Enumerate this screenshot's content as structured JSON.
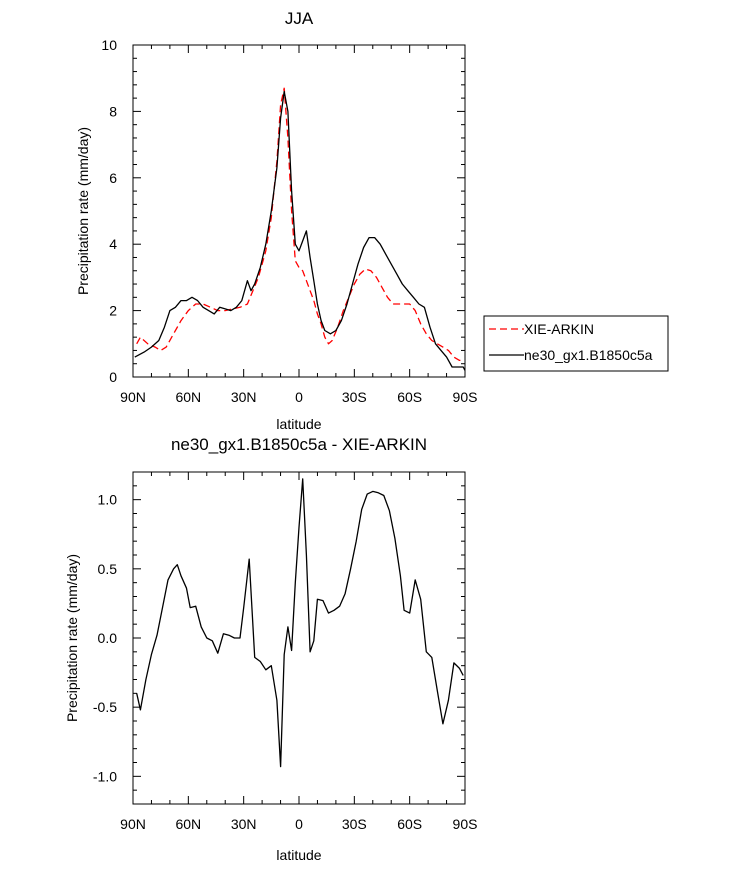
{
  "chart_data": [
    {
      "type": "line",
      "title": "JJA",
      "xlabel": "latitude",
      "ylabel": "Precipitation rate (mm/day)",
      "xlim": [
        -90,
        90
      ],
      "ylim": [
        0,
        10
      ],
      "x_tick_values": [
        -90,
        -60,
        -30,
        0,
        30,
        60,
        90
      ],
      "x_tick_labels": [
        "90N",
        "60N",
        "30N",
        "0",
        "30S",
        "60S",
        "90S"
      ],
      "y_tick_values": [
        0,
        2,
        4,
        6,
        8,
        10
      ],
      "y_tick_labels": [
        "0",
        "2",
        "4",
        "6",
        "8",
        "10"
      ],
      "legend_position": "right",
      "series": [
        {
          "name": "XIE-ARKIN",
          "color": "#ff0000",
          "dash": "dashed",
          "points": [
            [
              -88,
              1.0
            ],
            [
              -86,
              1.2
            ],
            [
              -82,
              1.0
            ],
            [
              -78,
              0.9
            ],
            [
              -75,
              0.8
            ],
            [
              -72,
              0.9
            ],
            [
              -68,
              1.3
            ],
            [
              -64,
              1.7
            ],
            [
              -60,
              2.0
            ],
            [
              -56,
              2.2
            ],
            [
              -52,
              2.2
            ],
            [
              -48,
              2.1
            ],
            [
              -44,
              2.0
            ],
            [
              -40,
              2.0
            ],
            [
              -36,
              2.05
            ],
            [
              -32,
              2.1
            ],
            [
              -28,
              2.2
            ],
            [
              -25,
              2.6
            ],
            [
              -22,
              3.0
            ],
            [
              -18,
              3.8
            ],
            [
              -15,
              4.8
            ],
            [
              -12,
              6.5
            ],
            [
              -10,
              8.2
            ],
            [
              -8,
              8.7
            ],
            [
              -6,
              7.2
            ],
            [
              -4,
              5.0
            ],
            [
              -2,
              3.5
            ],
            [
              0,
              3.3
            ],
            [
              2,
              3.2
            ],
            [
              4,
              2.9
            ],
            [
              6,
              2.6
            ],
            [
              8,
              2.3
            ],
            [
              10,
              1.9
            ],
            [
              12,
              1.6
            ],
            [
              14,
              1.2
            ],
            [
              16,
              1.0
            ],
            [
              18,
              1.1
            ],
            [
              21,
              1.5
            ],
            [
              24,
              2.0
            ],
            [
              27,
              2.4
            ],
            [
              30,
              2.8
            ],
            [
              33,
              3.1
            ],
            [
              36,
              3.25
            ],
            [
              39,
              3.2
            ],
            [
              42,
              3.0
            ],
            [
              45,
              2.7
            ],
            [
              48,
              2.4
            ],
            [
              51,
              2.2
            ],
            [
              54,
              2.2
            ],
            [
              57,
              2.2
            ],
            [
              60,
              2.2
            ],
            [
              63,
              2.0
            ],
            [
              66,
              1.6
            ],
            [
              69,
              1.3
            ],
            [
              72,
              1.1
            ],
            [
              75,
              1.0
            ],
            [
              78,
              0.9
            ],
            [
              81,
              0.8
            ],
            [
              84,
              0.6
            ],
            [
              87,
              0.5
            ],
            [
              89,
              0.5
            ]
          ]
        },
        {
          "name": "ne30_gx1.B1850c5a",
          "color": "#000000",
          "dash": "solid",
          "points": [
            [
              -89,
              0.6
            ],
            [
              -84,
              0.75
            ],
            [
              -80,
              0.9
            ],
            [
              -76,
              1.1
            ],
            [
              -73,
              1.5
            ],
            [
              -70,
              2.0
            ],
            [
              -67,
              2.1
            ],
            [
              -64,
              2.3
            ],
            [
              -61,
              2.3
            ],
            [
              -58,
              2.4
            ],
            [
              -55,
              2.3
            ],
            [
              -52,
              2.1
            ],
            [
              -49,
              2.0
            ],
            [
              -46,
              1.9
            ],
            [
              -43,
              2.1
            ],
            [
              -40,
              2.05
            ],
            [
              -37,
              2.0
            ],
            [
              -34,
              2.1
            ],
            [
              -31,
              2.3
            ],
            [
              -28,
              2.9
            ],
            [
              -26,
              2.6
            ],
            [
              -24,
              2.8
            ],
            [
              -21,
              3.3
            ],
            [
              -18,
              4.0
            ],
            [
              -15,
              5.0
            ],
            [
              -12,
              6.3
            ],
            [
              -10,
              7.8
            ],
            [
              -8,
              8.6
            ],
            [
              -6,
              8.0
            ],
            [
              -4,
              5.6
            ],
            [
              -2,
              4.0
            ],
            [
              0,
              3.8
            ],
            [
              2,
              4.1
            ],
            [
              4,
              4.4
            ],
            [
              6,
              3.6
            ],
            [
              8,
              2.9
            ],
            [
              10,
              2.2
            ],
            [
              12,
              1.7
            ],
            [
              14,
              1.4
            ],
            [
              17,
              1.3
            ],
            [
              20,
              1.4
            ],
            [
              23,
              1.7
            ],
            [
              26,
              2.2
            ],
            [
              29,
              2.8
            ],
            [
              32,
              3.4
            ],
            [
              35,
              3.9
            ],
            [
              38,
              4.2
            ],
            [
              41,
              4.2
            ],
            [
              44,
              4.0
            ],
            [
              47,
              3.7
            ],
            [
              50,
              3.4
            ],
            [
              53,
              3.1
            ],
            [
              56,
              2.8
            ],
            [
              59,
              2.6
            ],
            [
              62,
              2.4
            ],
            [
              65,
              2.2
            ],
            [
              68,
              2.1
            ],
            [
              71,
              1.5
            ],
            [
              74,
              1.0
            ],
            [
              77,
              0.8
            ],
            [
              80,
              0.6
            ],
            [
              83,
              0.3
            ],
            [
              86,
              0.3
            ],
            [
              89,
              0.3
            ],
            [
              90,
              0.2
            ]
          ]
        }
      ]
    },
    {
      "type": "line",
      "title": "ne30_gx1.B1850c5a - XIE-ARKIN",
      "xlabel": "latitude",
      "ylabel": "Precipitation rate (mm/day)",
      "xlim": [
        -90,
        90
      ],
      "ylim": [
        -1.2,
        1.2
      ],
      "x_tick_values": [
        -90,
        -60,
        -30,
        0,
        30,
        60,
        90
      ],
      "x_tick_labels": [
        "90N",
        "60N",
        "30N",
        "0",
        "30S",
        "60S",
        "90S"
      ],
      "y_tick_values": [
        -1.0,
        -0.5,
        0.0,
        0.5,
        1.0
      ],
      "y_tick_labels": [
        "-1.0",
        "-0.5",
        "0.0",
        "0.5",
        "1.0"
      ],
      "series": [
        {
          "color": "#000000",
          "dash": "solid",
          "points": [
            [
              -88,
              -0.4
            ],
            [
              -86,
              -0.52
            ],
            [
              -83,
              -0.3
            ],
            [
              -80,
              -0.12
            ],
            [
              -77,
              0.02
            ],
            [
              -74,
              0.22
            ],
            [
              -71,
              0.42
            ],
            [
              -68,
              0.5
            ],
            [
              -66,
              0.53
            ],
            [
              -64,
              0.45
            ],
            [
              -61,
              0.36
            ],
            [
              -59,
              0.22
            ],
            [
              -56,
              0.23
            ],
            [
              -53,
              0.08
            ],
            [
              -50,
              0.0
            ],
            [
              -47,
              -0.02
            ],
            [
              -44,
              -0.11
            ],
            [
              -41,
              0.03
            ],
            [
              -38,
              0.02
            ],
            [
              -35,
              0.0
            ],
            [
              -32,
              0.0
            ],
            [
              -30,
              0.22
            ],
            [
              -27,
              0.57
            ],
            [
              -24,
              -0.14
            ],
            [
              -21,
              -0.17
            ],
            [
              -18,
              -0.23
            ],
            [
              -15,
              -0.2
            ],
            [
              -12,
              -0.45
            ],
            [
              -10,
              -0.93
            ],
            [
              -8,
              -0.12
            ],
            [
              -6,
              0.08
            ],
            [
              -4,
              -0.09
            ],
            [
              -2,
              0.4
            ],
            [
              0,
              0.8
            ],
            [
              2,
              1.15
            ],
            [
              4,
              0.6
            ],
            [
              6,
              -0.1
            ],
            [
              8,
              -0.02
            ],
            [
              10,
              0.28
            ],
            [
              13,
              0.27
            ],
            [
              16,
              0.18
            ],
            [
              19,
              0.2
            ],
            [
              22,
              0.23
            ],
            [
              25,
              0.32
            ],
            [
              28,
              0.5
            ],
            [
              31,
              0.7
            ],
            [
              34,
              0.93
            ],
            [
              37,
              1.04
            ],
            [
              40,
              1.06
            ],
            [
              43,
              1.05
            ],
            [
              46,
              1.03
            ],
            [
              49,
              0.92
            ],
            [
              52,
              0.72
            ],
            [
              55,
              0.45
            ],
            [
              57,
              0.2
            ],
            [
              60,
              0.18
            ],
            [
              63,
              0.42
            ],
            [
              66,
              0.28
            ],
            [
              69,
              -0.1
            ],
            [
              72,
              -0.14
            ],
            [
              75,
              -0.38
            ],
            [
              78,
              -0.62
            ],
            [
              81,
              -0.45
            ],
            [
              84,
              -0.18
            ],
            [
              87,
              -0.22
            ],
            [
              89,
              -0.27
            ]
          ]
        }
      ]
    }
  ]
}
